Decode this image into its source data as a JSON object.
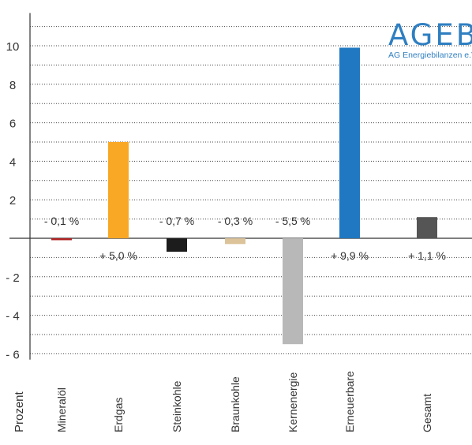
{
  "logo": {
    "name": "AGEB",
    "subtitle": "AG Energiebilanzen e.V."
  },
  "chart_data": {
    "type": "bar",
    "ylabel": "Prozent",
    "ylim": [
      -6.3,
      11.7
    ],
    "y_ticks": [
      -6,
      -4,
      -2,
      2,
      4,
      6,
      8,
      10
    ],
    "categories": [
      "Mineralöl",
      "Erdgas",
      "Steinkohle",
      "Braunkohle",
      "Kernenergie",
      "Erneuerbare",
      "Gesamt"
    ],
    "values": [
      -0.1,
      5.0,
      -0.7,
      -0.3,
      -5.5,
      9.9,
      1.1
    ],
    "data_labels": [
      "- 0,1 %",
      "+ 5,0 %",
      "- 0,7 %",
      "- 0,3 %",
      "- 5,5 %",
      "+ 9,9 %",
      "+ 1,1 %"
    ],
    "colors": [
      "#b22222",
      "#f9a825",
      "#1c1c1c",
      "#dcc39a",
      "#b8b8b8",
      "#1f78c1",
      "#555555"
    ],
    "grid": "dotted-horizontal"
  }
}
